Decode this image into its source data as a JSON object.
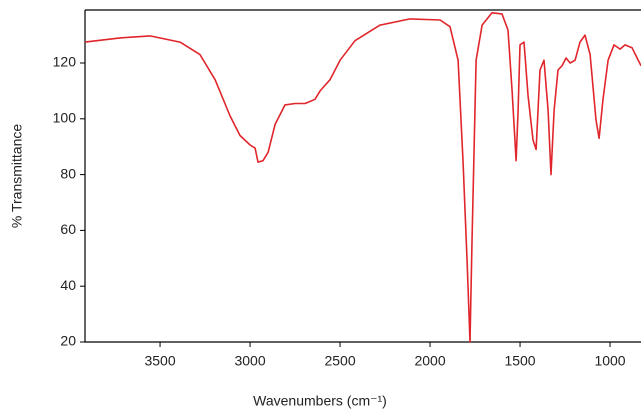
{
  "chart_data": {
    "type": "line",
    "x_label": "Wavenumbers (cm⁻¹)",
    "y_label": "% Transmittance",
    "x": [
      3917,
      3722,
      3556,
      3389,
      3278,
      3194,
      3111,
      3056,
      3000,
      2972,
      2956,
      2928,
      2900,
      2861,
      2806,
      2750,
      2694,
      2639,
      2611,
      2556,
      2500,
      2417,
      2278,
      2111,
      1944,
      1889,
      1844,
      1817,
      1794,
      1778,
      1767,
      1744,
      1711,
      1656,
      1600,
      1567,
      1544,
      1522,
      1511,
      1500,
      1478,
      1456,
      1428,
      1411,
      1389,
      1367,
      1344,
      1328,
      1311,
      1289,
      1267,
      1244,
      1222,
      1194,
      1167,
      1139,
      1111,
      1078,
      1061,
      1039,
      1011,
      978,
      944,
      917,
      878,
      828
    ],
    "series": [
      {
        "color": "#e0262b",
        "values": [
          127.5,
          129,
          129.7,
          127.5,
          123,
          114,
          101,
          94,
          90.6,
          89.5,
          84.5,
          85,
          88,
          98,
          105,
          105.5,
          105.5,
          107,
          110,
          114,
          121,
          128,
          133.6,
          135.8,
          135.4,
          133,
          121,
          85,
          49,
          20,
          56,
          121,
          133.6,
          138,
          137.6,
          131.8,
          110,
          85,
          103,
          126.5,
          127.5,
          108.5,
          92.4,
          89,
          117.5,
          121,
          103,
          80,
          103,
          117.5,
          119,
          121.8,
          120,
          121,
          127.5,
          130,
          123,
          99.6,
          93,
          107,
          121,
          126.5,
          125,
          126.5,
          125.5,
          119
        ]
      }
    ],
    "xlim": [
      3917,
      828
    ],
    "ylim": [
      20,
      139
    ],
    "xticks": [
      3500,
      3000,
      2500,
      2000,
      1500,
      1000
    ],
    "yticks": [
      20,
      40,
      60,
      80,
      100,
      120
    ]
  }
}
